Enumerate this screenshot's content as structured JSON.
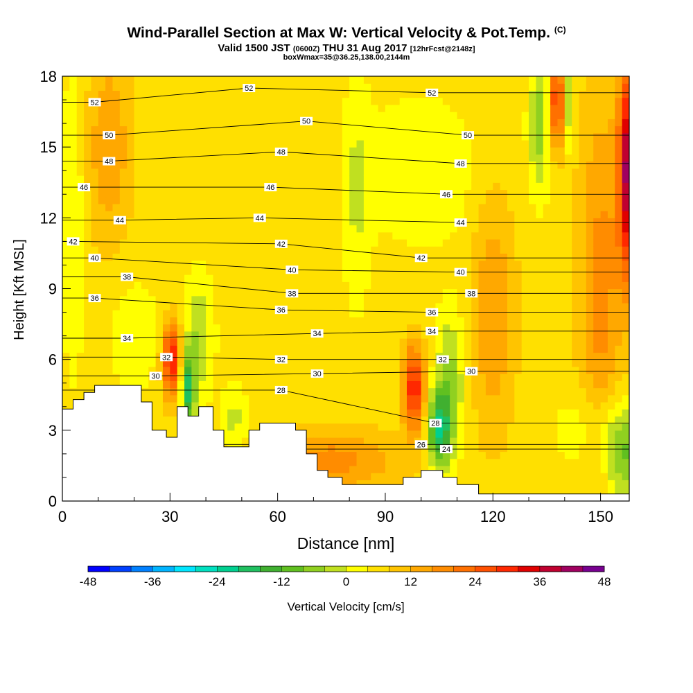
{
  "title": "Wind-Parallel Section at Max W: Vertical Velocity & Pot.Temp.",
  "title_mark": "(C)",
  "valid_prefix": "Valid 1500 JST",
  "valid_utc": "(0600Z)",
  "valid_date": "THU 31 Aug 2017",
  "forecast_note": "[12hrFcst@2148z]",
  "box_info": "boxWmax=35@36.25,138.00,2144m",
  "chart_data": {
    "type": "heatmap",
    "xlabel": "Distance [nm]",
    "ylabel": "Height [Kft MSL]",
    "xlim": [
      0,
      158
    ],
    "ylim": [
      0,
      18
    ],
    "x_ticks": [
      "0",
      "30",
      "60",
      "90",
      "120",
      "150"
    ],
    "y_ticks": [
      "0",
      "3",
      "6",
      "9",
      "12",
      "15",
      "18"
    ],
    "colorbar": {
      "label": "Vertical Velocity [cm/s]",
      "min": -48,
      "max": 48,
      "step": 4,
      "tick_labels": [
        "-48",
        "-36",
        "-24",
        "-12",
        "0",
        "12",
        "24",
        "36",
        "48"
      ],
      "colors": [
        "#0000ff",
        "#0040ff",
        "#0080ff",
        "#00b4ff",
        "#00e6ff",
        "#00e0c0",
        "#00d090",
        "#20c060",
        "#40b030",
        "#60c020",
        "#90d020",
        "#c0e020",
        "#ffff00",
        "#ffe000",
        "#ffc400",
        "#ffa800",
        "#ff8c00",
        "#ff7000",
        "#ff5000",
        "#ff2800",
        "#e00000",
        "#c00030",
        "#a00060",
        "#780090"
      ]
    },
    "terrain_kft": [
      [
        0,
        3.9
      ],
      [
        3,
        3.9
      ],
      [
        3,
        4.3
      ],
      [
        6,
        4.3
      ],
      [
        6,
        4.6
      ],
      [
        9,
        4.6
      ],
      [
        9,
        4.9
      ],
      [
        22,
        4.9
      ],
      [
        22,
        4.2
      ],
      [
        25,
        4.2
      ],
      [
        25,
        3.0
      ],
      [
        29,
        3.0
      ],
      [
        29,
        2.7
      ],
      [
        32,
        2.7
      ],
      [
        32,
        4.0
      ],
      [
        35,
        4.0
      ],
      [
        35,
        3.6
      ],
      [
        38,
        3.6
      ],
      [
        38,
        4.0
      ],
      [
        42,
        4.0
      ],
      [
        42,
        3.0
      ],
      [
        45,
        3.0
      ],
      [
        45,
        2.3
      ],
      [
        48,
        2.3
      ],
      [
        48,
        2.3
      ],
      [
        52,
        2.3
      ],
      [
        52,
        3.0
      ],
      [
        55,
        3.0
      ],
      [
        55,
        3.3
      ],
      [
        65,
        3.3
      ],
      [
        65,
        3.0
      ],
      [
        68,
        3.0
      ],
      [
        68,
        2.0
      ],
      [
        71,
        2.0
      ],
      [
        71,
        1.3
      ],
      [
        74,
        1.3
      ],
      [
        74,
        1.0
      ],
      [
        78,
        1.0
      ],
      [
        78,
        0.7
      ],
      [
        88,
        0.7
      ],
      [
        88,
        0.7
      ],
      [
        95,
        0.7
      ],
      [
        95,
        1.0
      ],
      [
        100,
        1.0
      ],
      [
        100,
        1.3
      ],
      [
        106,
        1.3
      ],
      [
        106,
        1.0
      ],
      [
        110,
        1.0
      ],
      [
        110,
        0.7
      ],
      [
        116,
        0.7
      ],
      [
        116,
        0.3
      ],
      [
        150,
        0.3
      ],
      [
        150,
        0.3
      ],
      [
        158,
        0.3
      ]
    ],
    "theta_isentropes": {
      "values": [
        24,
        26,
        28,
        30,
        32,
        34,
        36,
        38,
        40,
        42,
        44,
        46,
        48,
        50,
        52
      ],
      "label_positions": [
        {
          "label": "52",
          "x": 9,
          "y": 16.9
        },
        {
          "label": "52",
          "x": 52,
          "y": 17.5
        },
        {
          "label": "52",
          "x": 103,
          "y": 17.3
        },
        {
          "label": "50",
          "x": 13,
          "y": 15.5
        },
        {
          "label": "50",
          "x": 68,
          "y": 16.1
        },
        {
          "label": "50",
          "x": 113,
          "y": 15.5
        },
        {
          "label": "48",
          "x": 13,
          "y": 14.4
        },
        {
          "label": "48",
          "x": 61,
          "y": 14.8
        },
        {
          "label": "48",
          "x": 111,
          "y": 14.3
        },
        {
          "label": "46",
          "x": 6,
          "y": 13.3
        },
        {
          "label": "46",
          "x": 58,
          "y": 13.3
        },
        {
          "label": "46",
          "x": 107,
          "y": 13.0
        },
        {
          "label": "44",
          "x": 16,
          "y": 11.9
        },
        {
          "label": "44",
          "x": 55,
          "y": 12.0
        },
        {
          "label": "44",
          "x": 111,
          "y": 11.8
        },
        {
          "label": "42",
          "x": 3,
          "y": 11.0
        },
        {
          "label": "42",
          "x": 61,
          "y": 10.9
        },
        {
          "label": "42",
          "x": 100,
          "y": 10.3
        },
        {
          "label": "40",
          "x": 9,
          "y": 10.3
        },
        {
          "label": "40",
          "x": 64,
          "y": 9.8
        },
        {
          "label": "40",
          "x": 111,
          "y": 9.7
        },
        {
          "label": "38",
          "x": 18,
          "y": 9.5
        },
        {
          "label": "38",
          "x": 64,
          "y": 8.8
        },
        {
          "label": "38",
          "x": 114,
          "y": 8.8
        },
        {
          "label": "36",
          "x": 9,
          "y": 8.6
        },
        {
          "label": "36",
          "x": 61,
          "y": 8.1
        },
        {
          "label": "36",
          "x": 103,
          "y": 8.0
        },
        {
          "label": "34",
          "x": 18,
          "y": 6.9
        },
        {
          "label": "34",
          "x": 71,
          "y": 7.1
        },
        {
          "label": "34",
          "x": 103,
          "y": 7.2
        },
        {
          "label": "32",
          "x": 29,
          "y": 6.1
        },
        {
          "label": "32",
          "x": 61,
          "y": 6.0
        },
        {
          "label": "32",
          "x": 106,
          "y": 6.0
        },
        {
          "label": "30",
          "x": 26,
          "y": 5.3
        },
        {
          "label": "30",
          "x": 71,
          "y": 5.4
        },
        {
          "label": "30",
          "x": 114,
          "y": 5.5
        },
        {
          "label": "28",
          "x": 61,
          "y": 4.7
        },
        {
          "label": "28",
          "x": 104,
          "y": 3.3
        },
        {
          "label": "26",
          "x": 100,
          "y": 2.4
        },
        {
          "label": "24",
          "x": 107,
          "y": 2.2
        }
      ]
    }
  }
}
